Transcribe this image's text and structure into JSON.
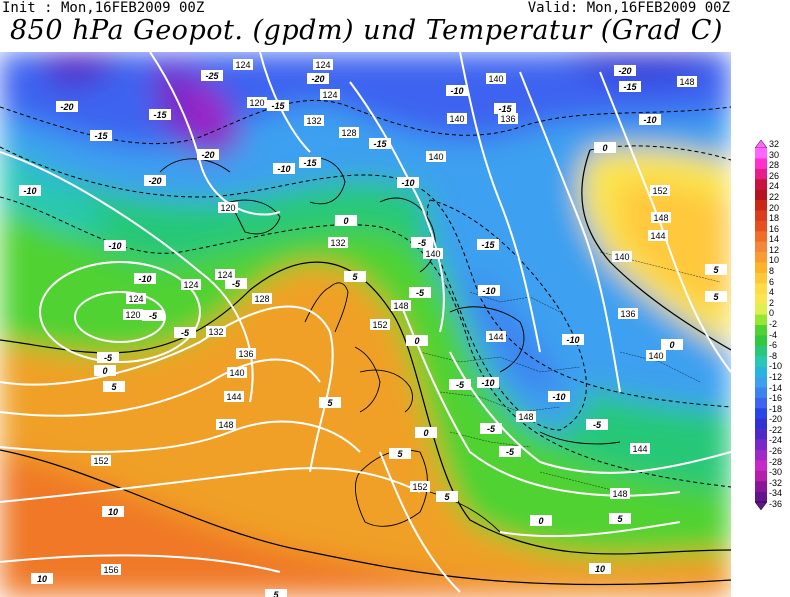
{
  "header": {
    "init": "Init : Mon,16FEB2009 00Z",
    "valid": "Valid: Mon,16FEB2009 00Z",
    "title": "850 hPa Geopot. (gpdm) und Temperatur (Grad C)"
  },
  "map": {
    "geopot_labels": [
      "124",
      "124",
      "124",
      "120",
      "120",
      "132",
      "128",
      "140",
      "136",
      "140",
      "140",
      "148",
      "152",
      "148",
      "144",
      "140",
      "136",
      "140",
      "132",
      "124",
      "124",
      "120",
      "124",
      "128",
      "132",
      "136",
      "140",
      "144",
      "148",
      "152",
      "148",
      "152",
      "156",
      "144",
      "148",
      "144",
      "140",
      "148",
      "152"
    ],
    "temp_labels": [
      "-20",
      "-25",
      "-20",
      "-15",
      "-20",
      "-15",
      "-10",
      "-15",
      "-20",
      "-10",
      "-15",
      "-10",
      "-15",
      "-5",
      "-10",
      "-5",
      "-10",
      "-5",
      "0",
      "-5",
      "5",
      "5",
      "0",
      "5",
      "10",
      "10",
      "5",
      "0",
      "-5",
      "-10",
      "-5",
      "-10",
      "-5",
      "5",
      "0",
      "5",
      "-15",
      "-10",
      "-5",
      "-15",
      "-10",
      "-5",
      "-10",
      "0",
      "5",
      "10",
      "5",
      "0",
      "-20",
      "-15",
      "-10",
      "-5",
      "0",
      "5"
    ]
  },
  "colorbar": {
    "labels": [
      "32",
      "30",
      "28",
      "26",
      "24",
      "22",
      "20",
      "18",
      "16",
      "14",
      "12",
      "10",
      "8",
      "6",
      "4",
      "2",
      "0",
      "-2",
      "-4",
      "-6",
      "-8",
      "-10",
      "-12",
      "-14",
      "-16",
      "-18",
      "-20",
      "-22",
      "-24",
      "-26",
      "-28",
      "-30",
      "-32",
      "-34",
      "-36"
    ],
    "colors": [
      "#ff66ff",
      "#ff33cc",
      "#e61e8c",
      "#c8143c",
      "#b4141e",
      "#c82814",
      "#dc3c1e",
      "#e6501e",
      "#f06e28",
      "#f5873c",
      "#fa9b32",
      "#ffb428",
      "#ffc83c",
      "#ffdc46",
      "#fae650",
      "#dcf050",
      "#96e632",
      "#50d232",
      "#32c83c",
      "#28c878",
      "#28c8b4",
      "#28b4dc",
      "#3ca0f0",
      "#3c82f0",
      "#3c64f0",
      "#2846e6",
      "#3232d2",
      "#5028c8",
      "#7828c8",
      "#a028c8",
      "#c828c8",
      "#b41eaa",
      "#8c1496",
      "#64148c"
    ]
  }
}
